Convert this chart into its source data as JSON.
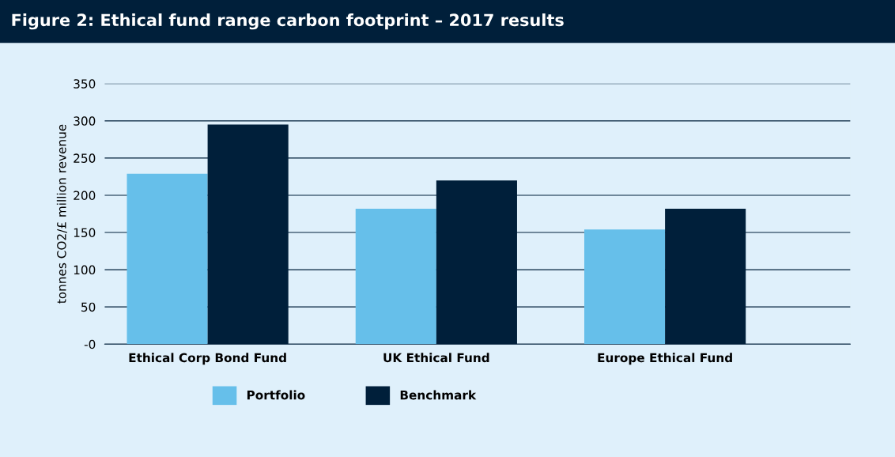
{
  "chart_data": {
    "type": "bar",
    "title": "Figure 2: Ethical fund range carbon footprint – 2017 results",
    "ylabel": "tonnes CO2/£ million revenue",
    "categories": [
      "Ethical Corp Bond Fund",
      "UK Ethical Fund",
      "Europe Ethical Fund"
    ],
    "series": [
      {
        "name": "Portfolio",
        "color": "#66bfea",
        "values": [
          229,
          182,
          154
        ]
      },
      {
        "name": "Benchmark",
        "color": "#001f3a",
        "values": [
          295,
          220,
          182
        ]
      }
    ],
    "ylim": [
      0,
      350
    ],
    "yticks": [
      {
        "value": 0,
        "label": "-0"
      },
      50,
      100,
      150,
      200,
      250,
      300,
      350
    ],
    "grid": "y",
    "legend": "bottom"
  }
}
